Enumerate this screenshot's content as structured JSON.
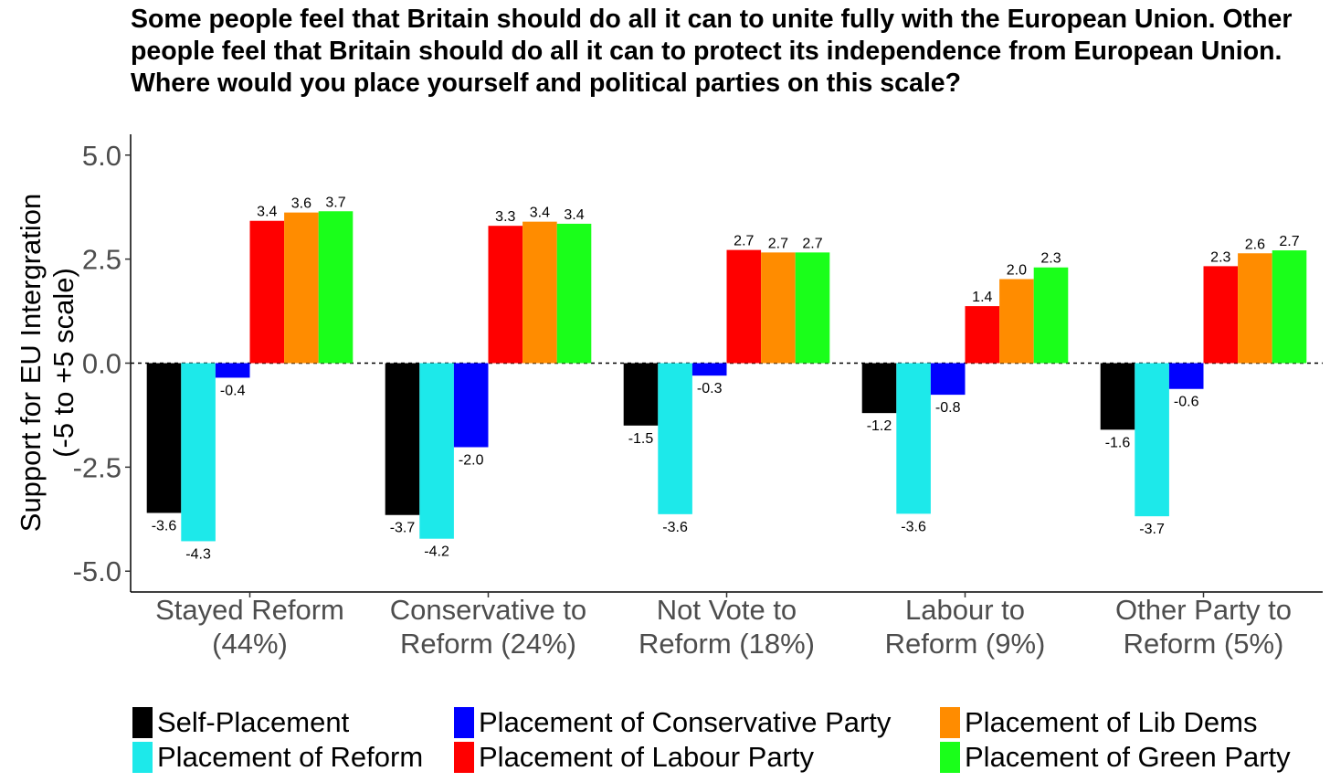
{
  "chart_data": {
    "type": "bar",
    "title": "Some people feel that Britain should do all it can to unite fully with the European Union. Other people feel that Britain should do all it can to protect its independence from European Union. Where would you place yourself and political parties on this scale?",
    "ylabel_lines": [
      "Support for EU Intergration",
      "(-5 to +5 scale)"
    ],
    "xlabel": "",
    "ylim": [
      -5.5,
      5.5
    ],
    "yticks": [
      -5.0,
      -2.5,
      0.0,
      2.5,
      5.0
    ],
    "ytick_labels": [
      "-5.0",
      "-2.5",
      "0.0",
      "2.5",
      "5.0"
    ],
    "reference_line": 0,
    "grid": false,
    "legend_position": "bottom",
    "categories": [
      [
        "Stayed Reform",
        "(44%)"
      ],
      [
        "Conservative to",
        "Reform (24%)"
      ],
      [
        "Not Vote to",
        "Reform (18%)"
      ],
      [
        "Labour to",
        "Reform (9%)"
      ],
      [
        "Other Party to",
        "Reform (5%)"
      ]
    ],
    "series": [
      {
        "name": "Self-Placement",
        "color": "#000000",
        "values": [
          -3.6,
          -3.65,
          -1.5,
          -1.2,
          -1.6
        ],
        "labels": [
          "-3.6",
          "-3.7",
          "-1.5",
          "-1.2",
          "-1.6"
        ]
      },
      {
        "name": "Placement of Reform",
        "color": "#1de9ea",
        "values": [
          -4.28,
          -4.22,
          -3.63,
          -3.62,
          -3.68
        ],
        "labels": [
          "-4.3",
          "-4.2",
          "-3.6",
          "-3.6",
          "-3.7"
        ]
      },
      {
        "name": "Placement of Conservative Party",
        "color": "#0000ff",
        "values": [
          -0.35,
          -2.02,
          -0.3,
          -0.76,
          -0.62
        ],
        "labels": [
          "-0.4",
          "-2.0",
          "-0.3",
          "-0.8",
          "-0.6"
        ]
      },
      {
        "name": "Placement of Labour Party",
        "color": "#ff0000",
        "values": [
          3.42,
          3.3,
          2.72,
          1.37,
          2.33
        ],
        "labels": [
          "3.4",
          "3.3",
          "2.7",
          "1.4",
          "2.3"
        ]
      },
      {
        "name": "Placement of Lib Dems",
        "color": "#ff8c00",
        "values": [
          3.62,
          3.4,
          2.66,
          2.02,
          2.64
        ],
        "labels": [
          "3.6",
          "3.4",
          "2.7",
          "2.0",
          "2.6"
        ]
      },
      {
        "name": "Placement of Green Party",
        "color": "#1aff1a",
        "values": [
          3.65,
          3.35,
          2.66,
          2.3,
          2.71
        ],
        "labels": [
          "3.7",
          "3.4",
          "2.7",
          "2.3",
          "2.7"
        ]
      }
    ]
  }
}
